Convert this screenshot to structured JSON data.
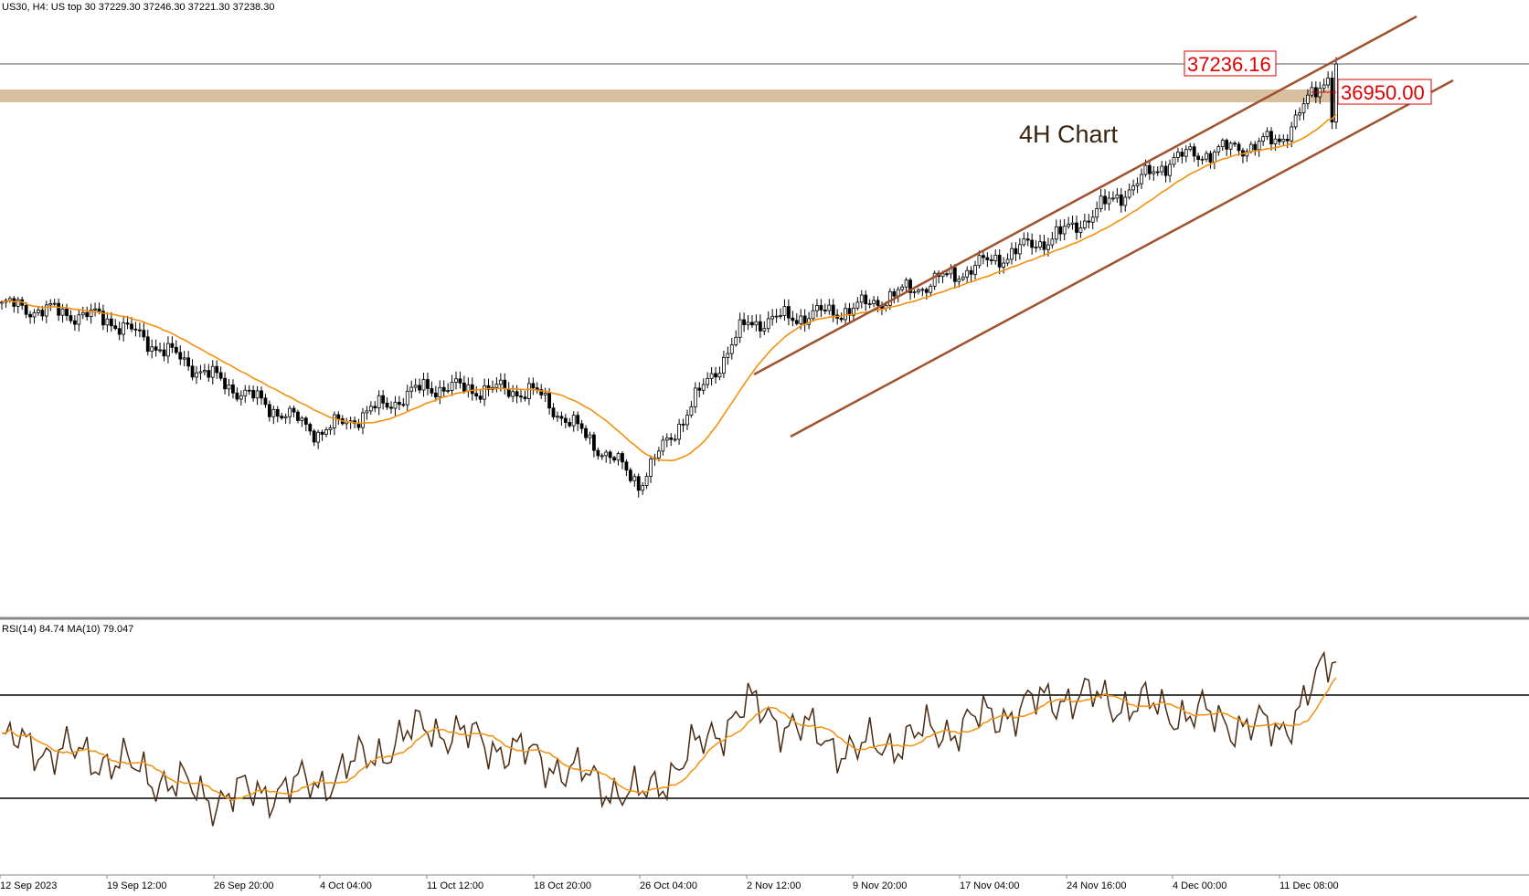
{
  "header": {
    "symbol_line": "US30, H4:  US top 30  37229.30 37246.30 37221.30 37238.30"
  },
  "annotation": {
    "chart_label": "4H Chart",
    "price_box_top": "37236.16",
    "price_box_level": "36950.00"
  },
  "rsi_panel": {
    "label": "RSI(14) 84.74 MA(10) 79.047"
  },
  "time_axis": {
    "labels": [
      "12 Sep 2023",
      "19 Sep 12:00",
      "26 Sep 20:00",
      "4 Oct 04:00",
      "11 Oct 12:00",
      "18 Oct 20:00",
      "26 Oct 04:00",
      "2 Nov 12:00",
      "9 Nov 20:00",
      "17 Nov 04:00",
      "24 Nov 16:00",
      "4 Dec 00:00",
      "11 Dec 08:00"
    ]
  },
  "colors": {
    "candle": "#000000",
    "moving_average": "#f4900c",
    "channel": "#a0522d",
    "zone": "#d8bf9f",
    "price_box": "#e00000",
    "rsi_line": "#4a2c14",
    "rsi_ma": "#f4900c"
  },
  "chart_data": [
    {
      "type": "candlestick",
      "symbol": "US30",
      "timeframe": "H4",
      "overlays": [
        "moving average",
        "ascending channel",
        "resistance zone"
      ],
      "x": [
        "12 Sep 2023",
        "19 Sep 12:00",
        "26 Sep 20:00",
        "4 Oct 04:00",
        "11 Oct 12:00",
        "18 Oct 20:00",
        "26 Oct 04:00",
        "2 Nov 12:00",
        "9 Nov 20:00",
        "17 Nov 04:00",
        "24 Nov 16:00",
        "4 Dec 00:00",
        "11 Dec 08:00"
      ],
      "close": [
        34600,
        34450,
        33800,
        33200,
        33700,
        33650,
        32650,
        34400,
        34550,
        34950,
        35400,
        36200,
        36400
      ],
      "last_close": 37238.3,
      "resistance_zone": 36950.0,
      "current_price_line": 37236.16,
      "channel": "ascending"
    },
    {
      "type": "line",
      "indicator": "RSI",
      "period": 14,
      "ma_period": 10,
      "current_rsi": 84.74,
      "current_ma": 79.047,
      "x": [
        "12 Sep 2023",
        "19 Sep 12:00",
        "26 Sep 20:00",
        "4 Oct 04:00",
        "11 Oct 12:00",
        "18 Oct 20:00",
        "26 Oct 04:00",
        "2 Nov 12:00",
        "9 Nov 20:00",
        "17 Nov 04:00",
        "24 Nov 16:00",
        "4 Dec 00:00",
        "11 Dec 08:00"
      ],
      "values": [
        52,
        45,
        30,
        36,
        58,
        46,
        30,
        66,
        48,
        58,
        70,
        64,
        56
      ],
      "levels": [
        70,
        30
      ]
    }
  ]
}
